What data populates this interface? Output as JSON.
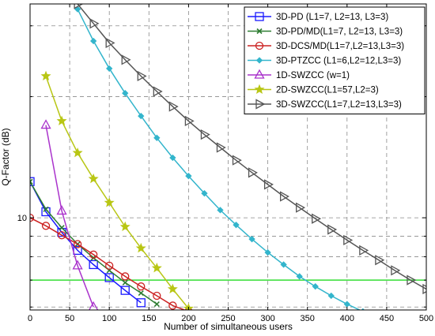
{
  "chart_data": {
    "type": "line",
    "xlabel": "Number of simultaneous users",
    "ylabel": "Q-Factor (dB)",
    "y_scale": "log",
    "xlim": [
      0,
      500
    ],
    "ylim": [
      5.9,
      34
    ],
    "x_ticks": [
      0,
      50,
      100,
      150,
      200,
      250,
      300,
      350,
      400,
      450,
      500
    ],
    "x_tick_labels": [
      "0",
      "50",
      "100",
      "150",
      "200",
      "250",
      "300",
      "350",
      "400",
      "450",
      "500"
    ],
    "y_tick_labels": [
      {
        "value": 10,
        "label": "10"
      }
    ],
    "grid": true,
    "legend_position": "top-right",
    "threshold_line": {
      "y": 7.0,
      "color": "#33dd33"
    },
    "series": [
      {
        "name": "3D-PD (L1=7, L2=13, L3=3)",
        "color": "#1a1aff",
        "marker": "square",
        "x": [
          0,
          20,
          40,
          60,
          80,
          100,
          120,
          140
        ],
        "y": [
          12.3,
          10.35,
          9.2,
          8.3,
          7.65,
          7.1,
          6.6,
          6.15
        ]
      },
      {
        "name": "3D-PD/MD(L1=7, L2=13, L3=3)",
        "color": "#2e7d32",
        "marker": "x",
        "x": [
          0,
          20,
          40,
          60,
          80,
          100,
          120,
          140,
          160
        ],
        "y": [
          12.3,
          10.5,
          9.45,
          8.6,
          7.95,
          7.4,
          6.9,
          6.5,
          6.1
        ]
      },
      {
        "name": "3D-DCS/MD(L1=7,L2=13,L3=3)",
        "color": "#cc2222",
        "marker": "circle",
        "x": [
          0,
          20,
          40,
          60,
          80,
          100,
          120,
          140,
          160,
          180,
          200
        ],
        "y": [
          10.0,
          9.55,
          9.05,
          8.6,
          8.1,
          7.6,
          7.15,
          6.75,
          6.4,
          6.05,
          5.85
        ]
      },
      {
        "name": "3D-PTZCC (L1=6,L2=12,L3=3)",
        "color": "#33b5cc",
        "marker": "diamond",
        "x": [
          60,
          80,
          100,
          120,
          140,
          160,
          180,
          200,
          220,
          240,
          260,
          280,
          300,
          320,
          340,
          360,
          380,
          400,
          420
        ],
        "y": [
          33.0,
          27.5,
          23.5,
          20.4,
          17.9,
          15.8,
          14.1,
          12.7,
          11.5,
          10.45,
          9.6,
          8.85,
          8.2,
          7.65,
          7.15,
          6.75,
          6.4,
          6.1,
          5.85
        ]
      },
      {
        "name": "1D-SWZCC (w=1)",
        "color": "#aa33cc",
        "marker": "triangle-up",
        "x": [
          20,
          40,
          60,
          80
        ],
        "y": [
          17.0,
          10.4,
          7.6,
          6.0
        ]
      },
      {
        "name": "2D-SWZCC(L1=57,L2=3)",
        "color": "#b8c614",
        "marker": "star",
        "x": [
          20,
          40,
          60,
          80,
          100,
          120,
          140,
          160,
          180,
          200
        ],
        "y": [
          22.5,
          17.4,
          14.5,
          12.5,
          10.9,
          9.5,
          8.4,
          7.5,
          6.65,
          5.95
        ]
      },
      {
        "name": "3D-SWZCC(L1=7,L2=13,L3=3)",
        "color": "#555555",
        "marker": "triangle-right",
        "x": [
          60,
          80,
          100,
          120,
          140,
          160,
          180,
          200,
          220,
          240,
          260,
          280,
          300,
          320,
          340,
          360,
          380,
          400,
          420,
          440,
          460,
          480,
          500
        ],
        "y": [
          34.0,
          30.4,
          27.2,
          24.7,
          22.5,
          20.6,
          18.9,
          17.4,
          16.1,
          14.95,
          13.9,
          12.95,
          12.1,
          11.3,
          10.6,
          9.95,
          9.35,
          8.8,
          8.3,
          7.85,
          7.4,
          7.0,
          6.65
        ]
      }
    ]
  }
}
